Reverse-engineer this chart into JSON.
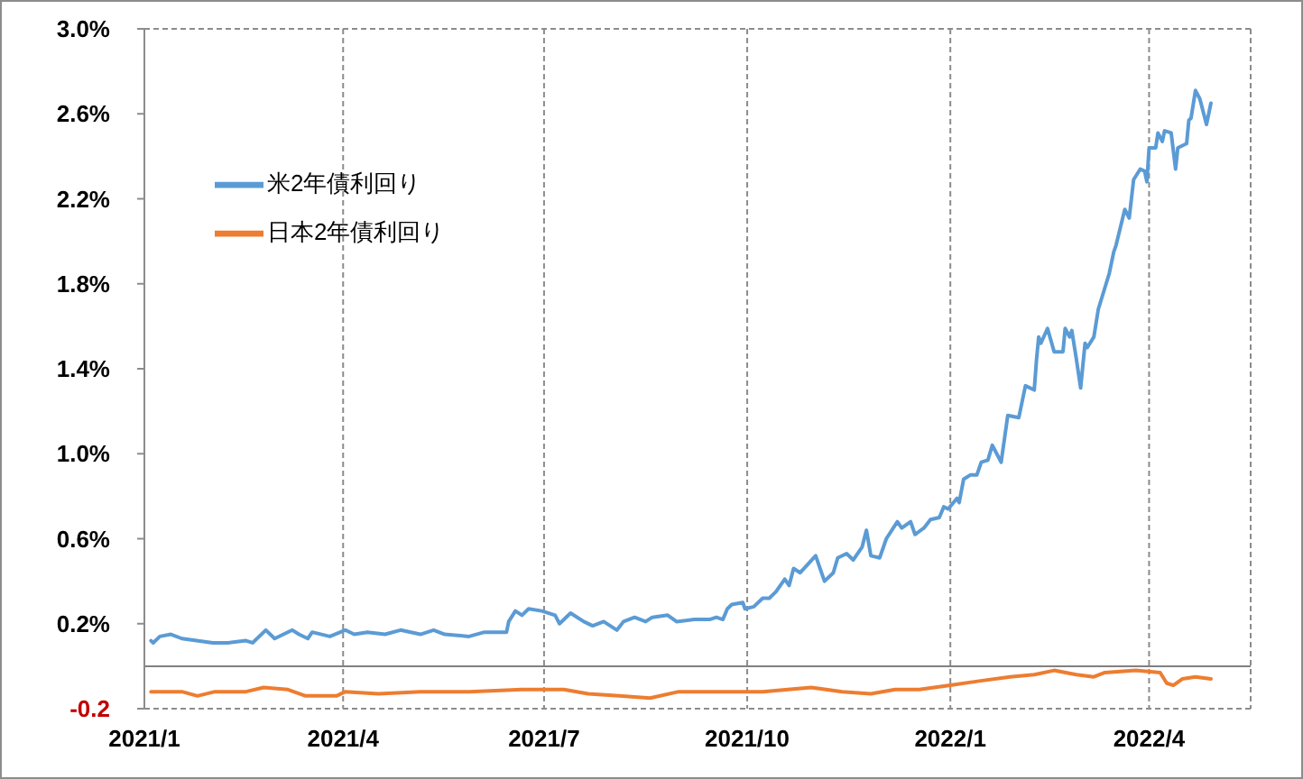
{
  "chart_data": {
    "type": "line",
    "xlim": [
      "2021-01-01",
      "2022-05-17"
    ],
    "xticks": [
      {
        "value": "2021-01",
        "label": "2021/1"
      },
      {
        "value": "2021-04",
        "label": "2021/4"
      },
      {
        "value": "2021-07",
        "label": "2021/7"
      },
      {
        "value": "2021-10",
        "label": "2021/10"
      },
      {
        "value": "2022-01",
        "label": "2022/1"
      },
      {
        "value": "2022-04",
        "label": "2022/4"
      }
    ],
    "ylim": [
      -0.2,
      3.0
    ],
    "yticks": [
      {
        "value": -0.2,
        "label": "-0.2"
      },
      {
        "value": 0.2,
        "label": "0.2%"
      },
      {
        "value": 0.6,
        "label": "0.6%"
      },
      {
        "value": 1.0,
        "label": "1.0%"
      },
      {
        "value": 1.4,
        "label": "1.4%"
      },
      {
        "value": 1.8,
        "label": "1.8%"
      },
      {
        "value": 2.2,
        "label": "2.2%"
      },
      {
        "value": 2.6,
        "label": "2.6%"
      },
      {
        "value": 3.0,
        "label": "3.0%"
      }
    ],
    "grid": true,
    "legend": "top left",
    "ref_lines": [
      {
        "axis": "y",
        "value": 0,
        "color": "#808080"
      }
    ],
    "series": [
      {
        "name": "米2年債利回り",
        "color": "#5b9bd5",
        "x": [
          "2021-01-04",
          "2021-01-05",
          "2021-01-08",
          "2021-01-13",
          "2021-01-18",
          "2021-02-01",
          "2021-02-08",
          "2021-02-16",
          "2021-02-19",
          "2021-02-25",
          "2021-03-01",
          "2021-03-09",
          "2021-03-12",
          "2021-03-16",
          "2021-03-18",
          "2021-03-26",
          "2021-04-02",
          "2021-04-06",
          "2021-04-12",
          "2021-04-20",
          "2021-04-27",
          "2021-05-06",
          "2021-05-12",
          "2021-05-17",
          "2021-05-28",
          "2021-06-04",
          "2021-06-14",
          "2021-06-15",
          "2021-06-18",
          "2021-06-21",
          "2021-06-24",
          "2021-06-30",
          "2021-07-06",
          "2021-07-08",
          "2021-07-13",
          "2021-07-19",
          "2021-07-23",
          "2021-07-28",
          "2021-08-03",
          "2021-08-06",
          "2021-08-11",
          "2021-08-16",
          "2021-08-19",
          "2021-08-26",
          "2021-08-30",
          "2021-09-07",
          "2021-09-14",
          "2021-09-17",
          "2021-09-20",
          "2021-09-22",
          "2021-09-24",
          "2021-09-29",
          "2021-09-30",
          "2021-10-04",
          "2021-10-08",
          "2021-10-11",
          "2021-10-14",
          "2021-10-18",
          "2021-10-20",
          "2021-10-22",
          "2021-10-25",
          "2021-11-01",
          "2021-11-05",
          "2021-11-09",
          "2021-11-11",
          "2021-11-15",
          "2021-11-18",
          "2021-11-22",
          "2021-11-24",
          "2021-11-26",
          "2021-11-30",
          "2021-12-03",
          "2021-12-08",
          "2021-12-10",
          "2021-12-14",
          "2021-12-16",
          "2021-12-20",
          "2021-12-23",
          "2021-12-27",
          "2021-12-29",
          "2021-12-31",
          "2022-01-04",
          "2022-01-05",
          "2022-01-07",
          "2022-01-10",
          "2022-01-13",
          "2022-01-15",
          "2022-01-18",
          "2022-01-20",
          "2022-01-21",
          "2022-01-24",
          "2022-01-27",
          "2022-02-01",
          "2022-02-04",
          "2022-02-08",
          "2022-02-09",
          "2022-02-10",
          "2022-02-11",
          "2022-02-14",
          "2022-02-17",
          "2022-02-21",
          "2022-02-22",
          "2022-02-24",
          "2022-02-25",
          "2022-02-27",
          "2022-03-01",
          "2022-03-03",
          "2022-03-04",
          "2022-03-07",
          "2022-03-09",
          "2022-03-14",
          "2022-03-16",
          "2022-03-17",
          "2022-03-21",
          "2022-03-23",
          "2022-03-25",
          "2022-03-28",
          "2022-03-30",
          "2022-03-31",
          "2022-04-01",
          "2022-04-04",
          "2022-04-05",
          "2022-04-07",
          "2022-04-08",
          "2022-04-11",
          "2022-04-13",
          "2022-04-14",
          "2022-04-18",
          "2022-04-19",
          "2022-04-20",
          "2022-04-22",
          "2022-04-24",
          "2022-04-27",
          "2022-04-28",
          "2022-04-29"
        ],
        "values": [
          0.12,
          0.11,
          0.14,
          0.15,
          0.13,
          0.11,
          0.11,
          0.12,
          0.11,
          0.17,
          0.13,
          0.17,
          0.15,
          0.13,
          0.16,
          0.14,
          0.17,
          0.15,
          0.16,
          0.15,
          0.17,
          0.15,
          0.17,
          0.15,
          0.14,
          0.16,
          0.16,
          0.21,
          0.26,
          0.24,
          0.27,
          0.26,
          0.24,
          0.2,
          0.25,
          0.21,
          0.19,
          0.21,
          0.17,
          0.21,
          0.23,
          0.21,
          0.23,
          0.24,
          0.21,
          0.22,
          0.22,
          0.23,
          0.22,
          0.27,
          0.29,
          0.3,
          0.27,
          0.28,
          0.32,
          0.32,
          0.35,
          0.41,
          0.38,
          0.46,
          0.44,
          0.52,
          0.4,
          0.44,
          0.51,
          0.53,
          0.5,
          0.56,
          0.64,
          0.52,
          0.51,
          0.6,
          0.68,
          0.65,
          0.68,
          0.62,
          0.65,
          0.69,
          0.7,
          0.75,
          0.74,
          0.79,
          0.77,
          0.88,
          0.9,
          0.9,
          0.96,
          0.97,
          1.04,
          1.02,
          0.96,
          1.18,
          1.17,
          1.32,
          1.3,
          1.44,
          1.55,
          1.52,
          1.59,
          1.48,
          1.48,
          1.59,
          1.55,
          1.58,
          1.45,
          1.31,
          1.52,
          1.5,
          1.55,
          1.68,
          1.85,
          1.95,
          1.98,
          2.15,
          2.11,
          2.29,
          2.34,
          2.33,
          2.28,
          2.44,
          2.44,
          2.51,
          2.47,
          2.52,
          2.51,
          2.34,
          2.44,
          2.46,
          2.57,
          2.58,
          2.71,
          2.67,
          2.55,
          2.6,
          2.65
        ]
      },
      {
        "name": "日本2年債利回り",
        "color": "#ed7d31",
        "x": [
          "2021-01-04",
          "2021-01-18",
          "2021-01-25",
          "2021-02-02",
          "2021-02-16",
          "2021-02-24",
          "2021-03-07",
          "2021-03-15",
          "2021-03-29",
          "2021-04-02",
          "2021-04-17",
          "2021-05-06",
          "2021-05-28",
          "2021-06-21",
          "2021-07-10",
          "2021-07-21",
          "2021-08-04",
          "2021-08-18",
          "2021-08-31",
          "2021-09-14",
          "2021-09-30",
          "2021-10-08",
          "2021-10-30",
          "2021-11-13",
          "2021-11-26",
          "2021-12-07",
          "2021-12-18",
          "2022-01-01",
          "2022-01-14",
          "2022-01-28",
          "2022-02-08",
          "2022-02-17",
          "2022-02-27",
          "2022-03-07",
          "2022-03-12",
          "2022-03-26",
          "2022-04-06",
          "2022-04-09",
          "2022-04-12",
          "2022-04-16",
          "2022-04-22",
          "2022-04-29"
        ],
        "values": [
          -0.12,
          -0.12,
          -0.14,
          -0.12,
          -0.12,
          -0.1,
          -0.11,
          -0.14,
          -0.14,
          -0.12,
          -0.13,
          -0.12,
          -0.12,
          -0.11,
          -0.11,
          -0.13,
          -0.14,
          -0.15,
          -0.12,
          -0.12,
          -0.12,
          -0.12,
          -0.1,
          -0.12,
          -0.13,
          -0.11,
          -0.11,
          -0.09,
          -0.07,
          -0.05,
          -0.04,
          -0.02,
          -0.04,
          -0.05,
          -0.03,
          -0.02,
          -0.03,
          -0.08,
          -0.09,
          -0.06,
          -0.05,
          -0.06
        ]
      }
    ]
  }
}
